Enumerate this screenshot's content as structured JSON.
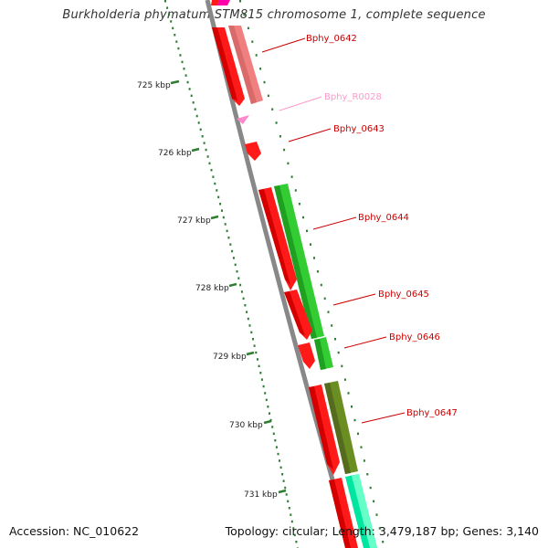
{
  "title": "Burkholderia phymatum STM815 chromosome 1, complete sequence",
  "footer": {
    "accession": "Accession: NC_010622",
    "summary": "Topology: circular; Length: 3,479,187 bp; Genes: 3,140"
  },
  "scale": {
    "ticks": [
      "725 kbp",
      "726 kbp",
      "727 kbp",
      "728 kbp",
      "729 kbp",
      "730 kbp",
      "731 kbp"
    ]
  },
  "genes": [
    {
      "label": "Bphy_0642",
      "color": "#cc0000"
    },
    {
      "label": "Bphy_R0028",
      "color": "#ff99cc"
    },
    {
      "label": "Bphy_0643",
      "color": "#cc0000"
    },
    {
      "label": "Bphy_0644",
      "color": "#cc0000"
    },
    {
      "label": "Bphy_0645",
      "color": "#cc0000"
    },
    {
      "label": "Bphy_0646",
      "color": "#cc0000"
    },
    {
      "label": "Bphy_0647",
      "color": "#cc0000"
    }
  ],
  "colors": {
    "backbone": "#888888",
    "tick": "#2e7d32",
    "cds_red": "#ff1a1a",
    "cds_salmon": "#f08080",
    "cds_green": "#33cc33",
    "cds_olive": "#6b8e23",
    "cds_teal": "#00e6a0",
    "trna_pink": "#ff88cc",
    "magenta": "#ff00aa"
  }
}
